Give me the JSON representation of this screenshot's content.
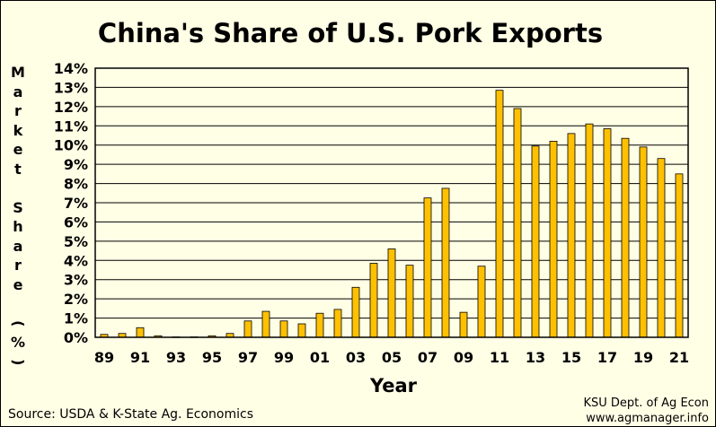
{
  "chart_data": {
    "type": "bar",
    "title": "China's Share of U.S. Pork Exports",
    "xlabel": "Year",
    "ylabel": "Market Share (%)",
    "ylim": [
      0,
      14
    ],
    "y_ticks": [
      "0%",
      "1%",
      "2%",
      "3%",
      "4%",
      "5%",
      "6%",
      "7%",
      "8%",
      "9%",
      "10%",
      "11%",
      "12%",
      "13%",
      "14%"
    ],
    "grid": true,
    "categories": [
      "89",
      "90",
      "91",
      "92",
      "93",
      "94",
      "95",
      "96",
      "97",
      "98",
      "99",
      "00",
      "01",
      "02",
      "03",
      "04",
      "05",
      "06",
      "07",
      "08",
      "09",
      "10",
      "11",
      "12",
      "13",
      "14",
      "15",
      "16",
      "17",
      "18",
      "19",
      "20",
      "21"
    ],
    "x_tick_labels": [
      "89",
      "",
      "91",
      "",
      "93",
      "",
      "95",
      "",
      "97",
      "",
      "99",
      "",
      "01",
      "",
      "03",
      "",
      "05",
      "",
      "07",
      "",
      "09",
      "",
      "11",
      "",
      "13",
      "",
      "15",
      "",
      "17",
      "",
      "19",
      "",
      "21"
    ],
    "values": [
      0.15,
      0.2,
      0.5,
      0.08,
      0.02,
      0.02,
      0.08,
      0.2,
      0.85,
      1.35,
      0.85,
      0.7,
      1.25,
      1.45,
      2.6,
      3.85,
      4.6,
      3.75,
      7.25,
      7.75,
      1.3,
      3.7,
      12.85,
      11.9,
      9.95,
      10.2,
      10.6,
      11.1,
      10.85,
      10.35,
      9.9,
      9.3,
      8.5
    ],
    "bar_color": "#ffc000"
  },
  "footer": {
    "source": "Source:  USDA & K-State Ag. Economics",
    "credit_line1": "KSU Dept. of Ag Econ",
    "credit_line2": "www.agmanager.info"
  }
}
